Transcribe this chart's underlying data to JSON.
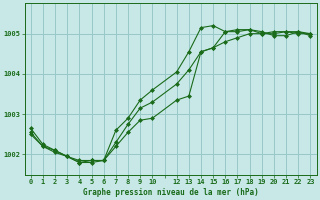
{
  "title": "Graphe pression niveau de la mer (hPa)",
  "background_color": "#c8e8e8",
  "grid_color": "#98c8c8",
  "line_color": "#1a6b1a",
  "ylim": [
    1001.5,
    1005.75
  ],
  "yticks": [
    1002,
    1003,
    1004,
    1005
  ],
  "xlim": [
    -0.5,
    23.5
  ],
  "xtick_positions": [
    0,
    1,
    2,
    3,
    4,
    5,
    6,
    7,
    8,
    9,
    10,
    11,
    12,
    13,
    14,
    15,
    16,
    17,
    18,
    19,
    20,
    21,
    22,
    23
  ],
  "xtick_labels": [
    "0",
    "1",
    "2",
    "3",
    "4",
    "5",
    "6",
    "7",
    "8",
    "9",
    "10",
    "",
    "12",
    "13",
    "14",
    "15",
    "16",
    "17",
    "18",
    "19",
    "20",
    "21",
    "22",
    "23"
  ],
  "series": [
    {
      "x": [
        0,
        1,
        2,
        3,
        4,
        5,
        6,
        7,
        8,
        9,
        10,
        12,
        13,
        14,
        15,
        16,
        17,
        18,
        19,
        20,
        21,
        22,
        23
      ],
      "y": [
        1002.55,
        1002.2,
        1002.05,
        1001.95,
        1001.85,
        1001.85,
        1001.85,
        1002.6,
        1002.9,
        1003.35,
        1003.6,
        1004.05,
        1004.55,
        1005.15,
        1005.2,
        1005.05,
        1005.05,
        1005.1,
        1005.0,
        1005.05,
        1005.05,
        1005.0,
        1005.0
      ]
    },
    {
      "x": [
        0,
        1,
        2,
        3,
        4,
        5,
        6,
        7,
        8,
        9,
        10,
        12,
        13,
        14,
        15,
        16,
        17,
        18,
        19,
        20,
        21,
        22,
        23
      ],
      "y": [
        1002.65,
        1002.25,
        1002.1,
        1001.95,
        1001.8,
        1001.8,
        1001.85,
        1002.3,
        1002.75,
        1003.15,
        1003.3,
        1003.75,
        1004.1,
        1004.55,
        1004.65,
        1004.8,
        1004.9,
        1005.0,
        1005.0,
        1005.0,
        1005.05,
        1005.05,
        1005.0
      ]
    },
    {
      "x": [
        0,
        1,
        2,
        3,
        4,
        5,
        6,
        7,
        8,
        9,
        10,
        12,
        13,
        14,
        15,
        16,
        17,
        18,
        19,
        20,
        21,
        22,
        23
      ],
      "y": [
        1002.5,
        1002.2,
        1002.1,
        1001.95,
        1001.8,
        1001.85,
        1001.85,
        1002.2,
        1002.55,
        1002.85,
        1002.9,
        1003.35,
        1003.45,
        1004.55,
        1004.65,
        1005.05,
        1005.1,
        1005.1,
        1005.05,
        1004.95,
        1004.95,
        1005.05,
        1004.95
      ]
    }
  ],
  "label_fontsize": 5.0,
  "title_fontsize": 5.5
}
